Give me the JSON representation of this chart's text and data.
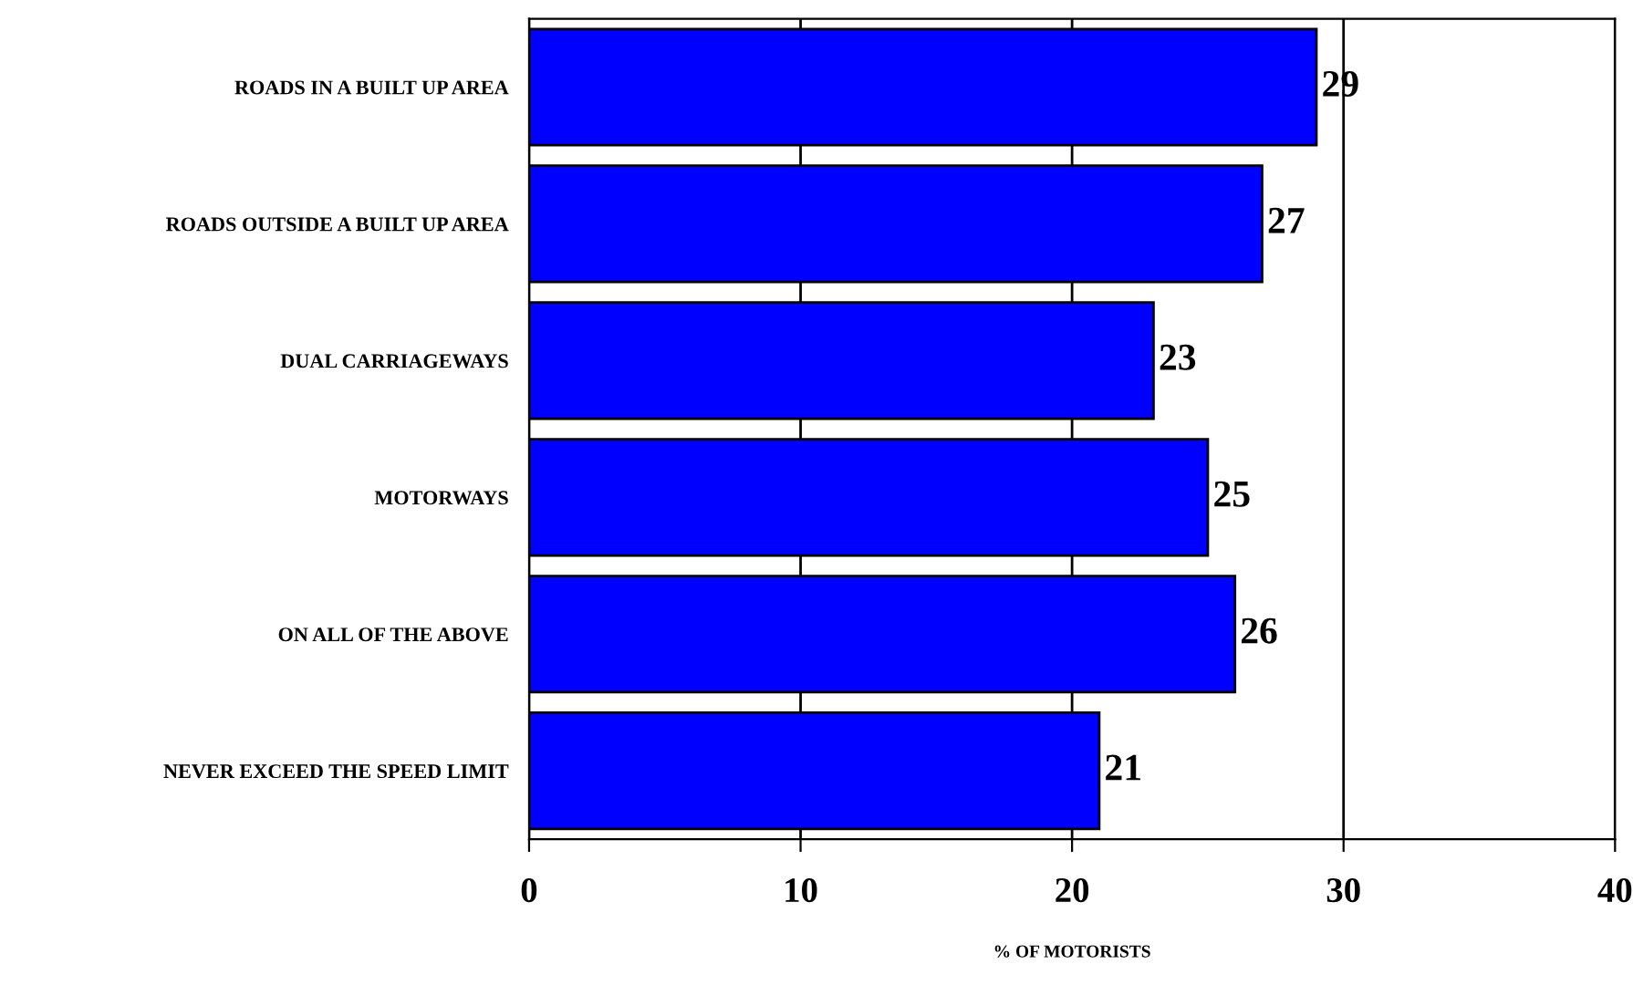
{
  "chart_data": {
    "type": "bar",
    "orientation": "horizontal",
    "xlabel": "% OF MOTORISTS",
    "categories": [
      "ROADS IN A BUILT UP AREA",
      "ROADS OUTSIDE A BUILT UP AREA",
      "DUAL CARRIAGEWAYS",
      "MOTORWAYS",
      "ON ALL OF THE ABOVE",
      "NEVER EXCEED THE SPEED LIMIT"
    ],
    "values": [
      29,
      27,
      23,
      25,
      26,
      21
    ],
    "color": "#0000ff",
    "xlim": [
      0,
      40
    ],
    "xticks": [
      0,
      10,
      20,
      30,
      40
    ],
    "grid": "x",
    "data_labels": true
  }
}
